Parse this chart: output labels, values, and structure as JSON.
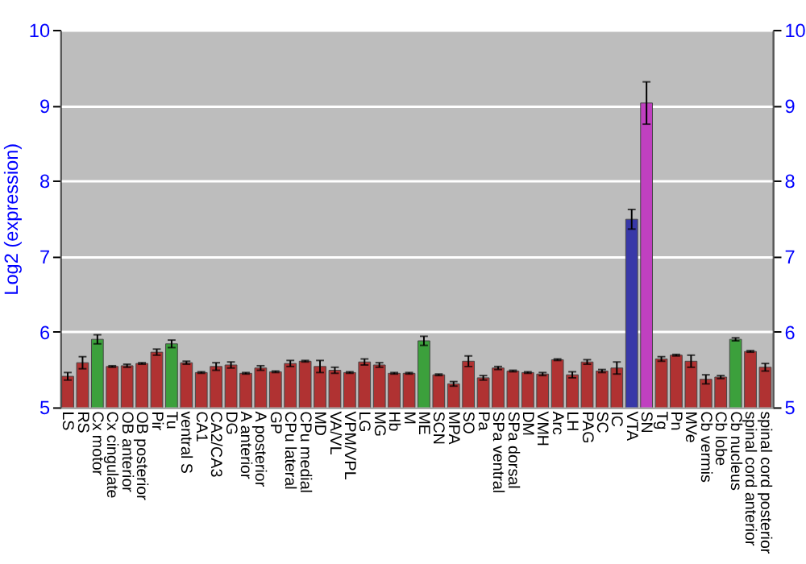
{
  "chart_data": {
    "type": "bar",
    "ylabel": "Log2 (expression)",
    "categories": [
      "LS",
      "RS",
      "Cx motor",
      "Cx cingulate",
      "OB anterior",
      "OB posterior",
      "Pir",
      "Tu",
      "ventral S",
      "CA1",
      "CA2/CA3",
      "DG",
      "A anterior",
      "A posterior",
      "GP",
      "CPu lateral",
      "CPu medial",
      "MD",
      "VA/VL",
      "VPM/VPL",
      "LG",
      "MG",
      "Hb",
      "M",
      "ME",
      "SCN",
      "MPA",
      "SO",
      "Pa",
      "SPa ventral",
      "SPa dorsal",
      "DM",
      "VMH",
      "Arc",
      "LH",
      "PAG",
      "SC",
      "IC",
      "VTA",
      "SN",
      "Tg",
      "Pn",
      "MVe",
      "Cb vermis",
      "Cb lobe",
      "Cb nucleus",
      "spinal cord anterior",
      "spinal cord posterior"
    ],
    "values": [
      5.41,
      5.59,
      5.9,
      5.54,
      5.55,
      5.58,
      5.73,
      5.84,
      5.59,
      5.46,
      5.54,
      5.56,
      5.45,
      5.52,
      5.47,
      5.58,
      5.61,
      5.54,
      5.49,
      5.46,
      5.6,
      5.56,
      5.45,
      5.45,
      5.88,
      5.43,
      5.31,
      5.61,
      5.39,
      5.52,
      5.48,
      5.46,
      5.44,
      5.63,
      5.43,
      5.6,
      5.48,
      5.52,
      7.49,
      9.03,
      5.64,
      5.69,
      5.61,
      5.37,
      5.4,
      5.9,
      5.74,
      5.53
    ],
    "errors": [
      0.05,
      0.08,
      0.06,
      0.01,
      0.02,
      0.01,
      0.04,
      0.05,
      0.02,
      0.01,
      0.05,
      0.04,
      0.01,
      0.03,
      0.01,
      0.04,
      0.01,
      0.08,
      0.04,
      0.01,
      0.04,
      0.03,
      0.01,
      0.01,
      0.06,
      0.01,
      0.03,
      0.07,
      0.03,
      0.02,
      0.01,
      0.01,
      0.02,
      0.01,
      0.04,
      0.03,
      0.02,
      0.08,
      0.13,
      0.28,
      0.03,
      0.01,
      0.08,
      0.06,
      0.02,
      0.02,
      0.01,
      0.05
    ],
    "colors": [
      "#b03232",
      "#b03232",
      "#3ca03c",
      "#b03232",
      "#b03232",
      "#b03232",
      "#b03232",
      "#3ca03c",
      "#b03232",
      "#b03232",
      "#b03232",
      "#b03232",
      "#b03232",
      "#b03232",
      "#b03232",
      "#b03232",
      "#b03232",
      "#b03232",
      "#b03232",
      "#b03232",
      "#b03232",
      "#b03232",
      "#b03232",
      "#b03232",
      "#3ca03c",
      "#b03232",
      "#b03232",
      "#b03232",
      "#b03232",
      "#b03232",
      "#b03232",
      "#b03232",
      "#b03232",
      "#b03232",
      "#b03232",
      "#b03232",
      "#b03232",
      "#b03232",
      "#3838a8",
      "#c040c0",
      "#b03232",
      "#b03232",
      "#b03232",
      "#b03232",
      "#b03232",
      "#3ca03c",
      "#b03232",
      "#b03232"
    ],
    "ylim": [
      5,
      10
    ],
    "yticks": [
      5,
      6,
      7,
      8,
      9,
      10
    ],
    "y2lim": [
      5,
      10
    ],
    "y2ticks": [
      5,
      6,
      7,
      8,
      9,
      10
    ],
    "grid": "y"
  }
}
